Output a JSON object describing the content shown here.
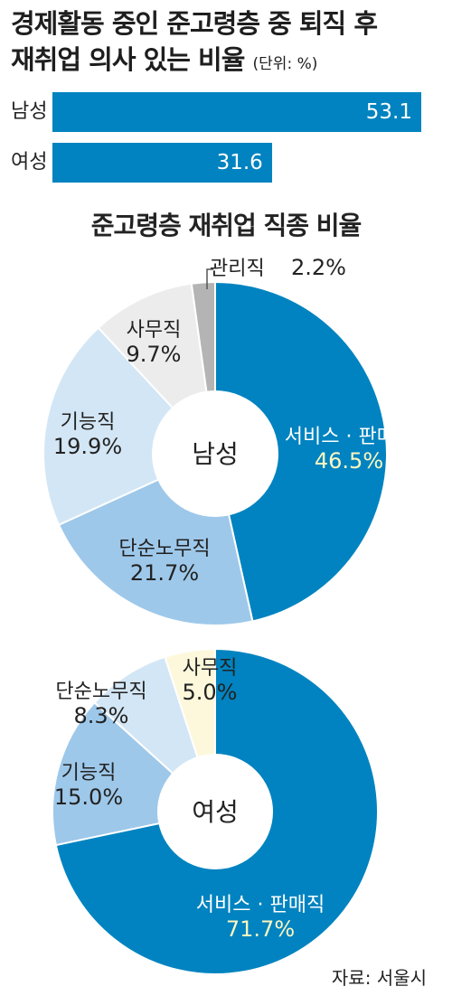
{
  "title": {
    "line1": "경제활동 중인 준고령층 중 퇴직 후",
    "line2": "재취업 의사 있는 비율",
    "unit": "(단위: %)"
  },
  "source": "자료: 서울시",
  "chart_data": [
    {
      "type": "bar",
      "categories": [
        "남성",
        "여성"
      ],
      "values": [
        53.1,
        31.6
      ],
      "value_labels": [
        "53.1",
        "31.6"
      ],
      "color": "#0083c0",
      "xlim": [
        0,
        53.1
      ]
    },
    {
      "type": "pie",
      "title": "준고령층 재취업 직종 비율",
      "center_label": "남성",
      "slices": [
        {
          "label": "서비스 · 판매직",
          "value": 46.5,
          "pct": "46.5%",
          "color": "#0083c0"
        },
        {
          "label": "단순노무직",
          "value": 21.7,
          "pct": "21.7%",
          "color": "#9ec8ea"
        },
        {
          "label": "기능직",
          "value": 19.9,
          "pct": "19.9%",
          "color": "#d3e6f5"
        },
        {
          "label": "사무직",
          "value": 9.7,
          "pct": "9.7%",
          "color": "#ececec"
        },
        {
          "label": "관리직",
          "value": 2.2,
          "pct": "2.2%",
          "color": "#b4b4b4"
        }
      ]
    },
    {
      "type": "pie",
      "center_label": "여성",
      "slices": [
        {
          "label": "서비스 · 판매직",
          "value": 71.7,
          "pct": "71.7%",
          "color": "#0083c0"
        },
        {
          "label": "기능직",
          "value": 15.0,
          "pct": "15.0%",
          "color": "#9ec8ea"
        },
        {
          "label": "단순노무직",
          "value": 8.3,
          "pct": "8.3%",
          "color": "#d3e6f5"
        },
        {
          "label": "사무직",
          "value": 5.0,
          "pct": "5.0%",
          "color": "#fdf8dc"
        }
      ]
    }
  ]
}
